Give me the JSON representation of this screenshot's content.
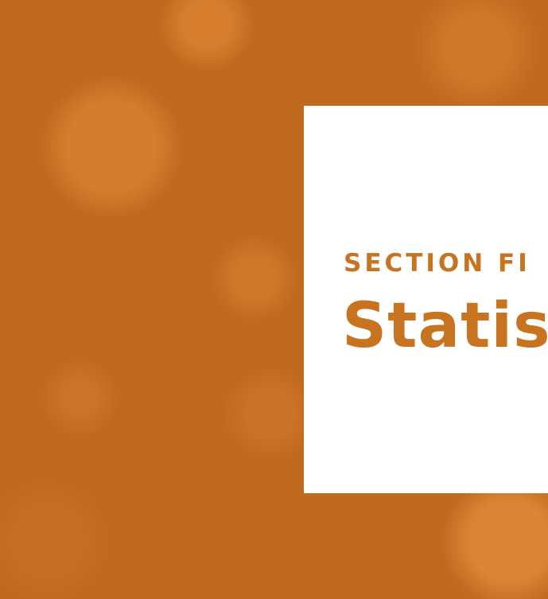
{
  "section_label": "SECTION FI",
  "title": "Statist"
}
